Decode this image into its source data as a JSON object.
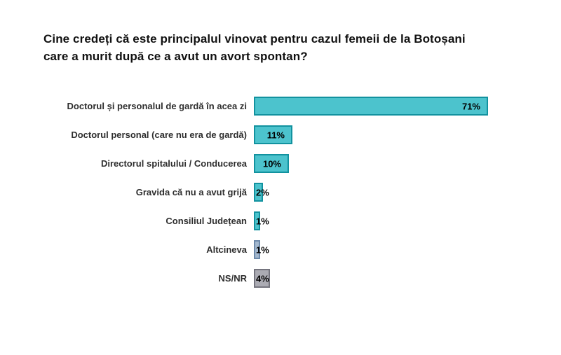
{
  "title": "Cine credeți că este principalul vinovat pentru cazul femeii de la Botoșani care a murit după ce a avut un avort spontan?",
  "chart_data": {
    "type": "bar",
    "orientation": "horizontal",
    "title": "Cine credeți că este principalul vinovat pentru cazul femeii de la Botoșani care a murit după ce a avut un avort spontan?",
    "categories": [
      "Doctorul și personalul de gardă în acea zi",
      "Doctorul personal (care nu era de gardă)",
      "Directorul spitalului / Conducerea",
      "Gravida că nu a avut grijă",
      "Consiliul Județean",
      "Altcineva",
      "NS/NR"
    ],
    "values": [
      71,
      11,
      10,
      2,
      1,
      1,
      4
    ],
    "value_labels": [
      "71%",
      "11%",
      "10%",
      "2%",
      "1%",
      "1%",
      "4%"
    ],
    "value_suffix": "%",
    "xlim": [
      0,
      75
    ],
    "grid": false,
    "legend": false,
    "bar_styles": [
      "teal",
      "teal",
      "teal",
      "teal",
      "teal",
      "blue",
      "gray"
    ],
    "colors": {
      "teal_fill": "#4cc3cd",
      "teal_border": "#12929f",
      "blue_fill": "#a3b8cf",
      "blue_border": "#6d89aa",
      "gray_fill": "#ababb3",
      "gray_border": "#74747e"
    }
  }
}
